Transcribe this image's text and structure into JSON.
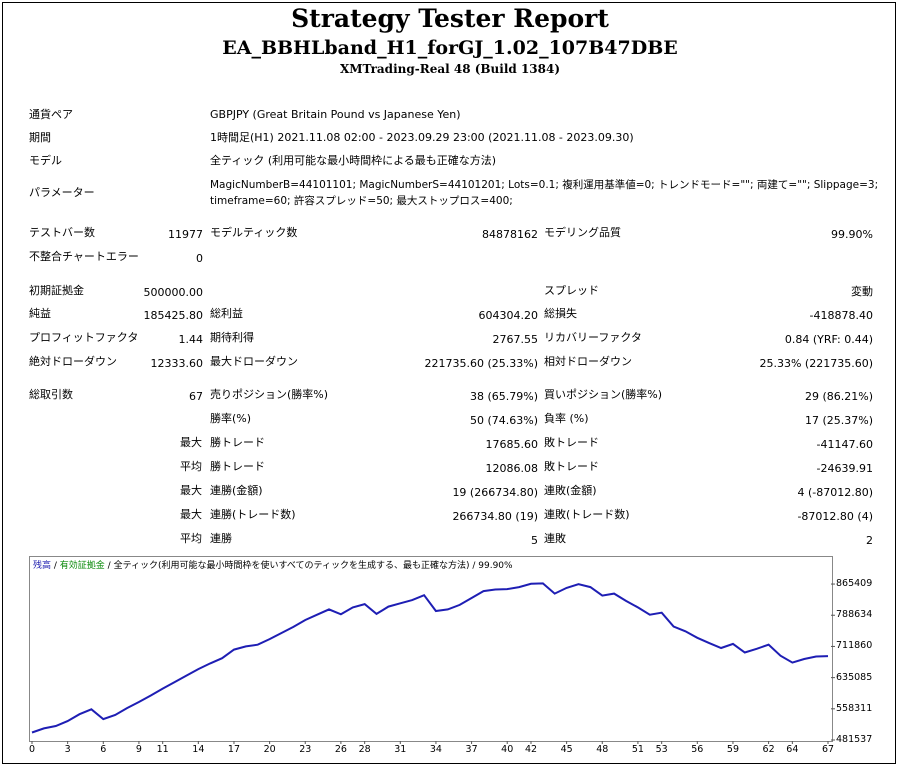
{
  "header": {
    "title": "Strategy Tester Report",
    "subtitle": "EA_BBHLband_H1_forGJ_1.02_107B47DBE",
    "server": "XMTrading-Real 48 (Build 1384)"
  },
  "settings": {
    "pair_label": "通貨ペア",
    "pair_value": "GBPJPY (Great Britain Pound vs Japanese Yen)",
    "period_label": "期間",
    "period_value": "1時間足(H1) 2021.11.08 02:00 - 2023.09.29 23:00 (2021.11.08 - 2023.09.30)",
    "model_label": "モデル",
    "model_value": "全ティック (利用可能な最小時間枠による最も正確な方法)",
    "params_label": "パラメーター",
    "params_line1": "MagicNumberB=44101101; MagicNumberS=44101201; Lots=0.1; 複利運用基準値=0; トレンドモード=\"\"; 両建て=\"\"; Slippage=3;",
    "params_line2": "timeframe=60; 許容スプレッド=50; 最大ストップロス=400;"
  },
  "stats": {
    "bars_label": "テストバー数",
    "bars_value": "11977",
    "ticks_label": "モデルティック数",
    "ticks_value": "84878162",
    "quality_label": "モデリング品質",
    "quality_value": "99.90%",
    "mismatch_label": "不整合チャートエラー",
    "mismatch_value": "0",
    "deposit_label": "初期証拠金",
    "deposit_value": "500000.00",
    "spread_label": "スプレッド",
    "spread_value": "変動",
    "net_label": "純益",
    "net_value": "185425.80",
    "gross_profit_label": "総利益",
    "gross_profit_value": "604304.20",
    "gross_loss_label": "総損失",
    "gross_loss_value": "-418878.40",
    "pf_label": "プロフィットファクタ",
    "pf_value": "1.44",
    "expected_label": "期待利得",
    "expected_value": "2767.55",
    "recovery_label": "リカバリーファクタ",
    "recovery_value": "0.84 (YRF: 0.44)",
    "abs_dd_label": "絶対ドローダウン",
    "abs_dd_value": "12333.60",
    "max_dd_label": "最大ドローダウン",
    "max_dd_value": "221735.60 (25.33%)",
    "rel_dd_label": "相対ドローダウン",
    "rel_dd_value": "25.33% (221735.60)",
    "trades_label": "総取引数",
    "trades_value": "67",
    "short_label": "売りポジション(勝率%)",
    "short_value": "38 (65.79%)",
    "long_label": "買いポジション(勝率%)",
    "long_value": "29 (86.21%)",
    "winrate_label": "勝率(%)",
    "winrate_value": "50 (74.63%)",
    "lossrate_label": "負率 (%)",
    "lossrate_value": "17 (25.37%)",
    "max1": "最大",
    "max_win_label": "勝トレード",
    "max_win_value": "17685.60",
    "max_loss_label": "敗トレード",
    "max_loss_value": "-41147.60",
    "avg1": "平均",
    "avg_win_label": "勝トレード",
    "avg_win_value": "12086.08",
    "avg_loss_label": "敗トレード",
    "avg_loss_value": "-24639.91",
    "max2": "最大",
    "cons_win_amt_label": "連勝(金額)",
    "cons_win_amt_value": "19 (266734.80)",
    "cons_loss_amt_label": "連敗(金額)",
    "cons_loss_amt_value": "4 (-87012.80)",
    "max3": "最大",
    "cons_win_cnt_label": "連勝(トレード数)",
    "cons_win_cnt_value": "266734.80 (19)",
    "cons_loss_cnt_label": "連敗(トレード数)",
    "cons_loss_cnt_value": "-87012.80 (4)",
    "avg2": "平均",
    "avg_cons_win_label": "連勝",
    "avg_cons_win_value": "5",
    "avg_cons_loss_label": "連敗",
    "avg_cons_loss_value": "2"
  },
  "chart_legend": {
    "balance": "残高",
    "sep1": " / ",
    "equity": "有効証拠金",
    "sep2": " / ",
    "model_text": "全ティック(利用可能な最小時間枠を使いすべてのティックを生成する、最も正確な方法) / 99.90%"
  },
  "chart_data": {
    "type": "line",
    "series": [
      {
        "name": "残高",
        "color": "#1e1eb4",
        "x": [
          0,
          1,
          2,
          3,
          4,
          5,
          6,
          7,
          8,
          9,
          10,
          11,
          12,
          13,
          14,
          15,
          16,
          17,
          18,
          19,
          20,
          21,
          22,
          23,
          24,
          25,
          26,
          27,
          28,
          29,
          30,
          31,
          32,
          33,
          34,
          35,
          36,
          37,
          38,
          39,
          40,
          41,
          42,
          43,
          44,
          45,
          46,
          47,
          48,
          49,
          50,
          51,
          52,
          53,
          54,
          55,
          56,
          57,
          58,
          59,
          60,
          61,
          62,
          63,
          64,
          65,
          66,
          67
        ],
        "values": [
          500000,
          510000,
          516000,
          528000,
          545000,
          557000,
          533000,
          543000,
          560000,
          575000,
          591000,
          608000,
          624000,
          640000,
          656000,
          670000,
          683000,
          704000,
          712000,
          716000,
          730000,
          745000,
          760000,
          777000,
          790000,
          803000,
          791000,
          808000,
          816000,
          792000,
          810000,
          818000,
          826000,
          838000,
          799000,
          803000,
          814000,
          831000,
          848000,
          852000,
          853000,
          858000,
          866000,
          867000,
          842000,
          856000,
          865000,
          858000,
          837000,
          842000,
          824000,
          808000,
          790000,
          795000,
          761000,
          749000,
          733000,
          720000,
          708000,
          718000,
          697000,
          706000,
          716000,
          689000,
          672000,
          681000,
          687000,
          688000
        ]
      }
    ],
    "xticks": [
      0,
      3,
      6,
      9,
      11,
      14,
      17,
      20,
      23,
      26,
      28,
      31,
      34,
      37,
      40,
      42,
      45,
      48,
      51,
      53,
      56,
      59,
      62,
      64,
      67
    ],
    "yticks": [
      "865409",
      "788634",
      "711860",
      "635085",
      "558311",
      "481537"
    ],
    "xlim": [
      0,
      67
    ],
    "ylim": [
      481537,
      900000
    ]
  }
}
